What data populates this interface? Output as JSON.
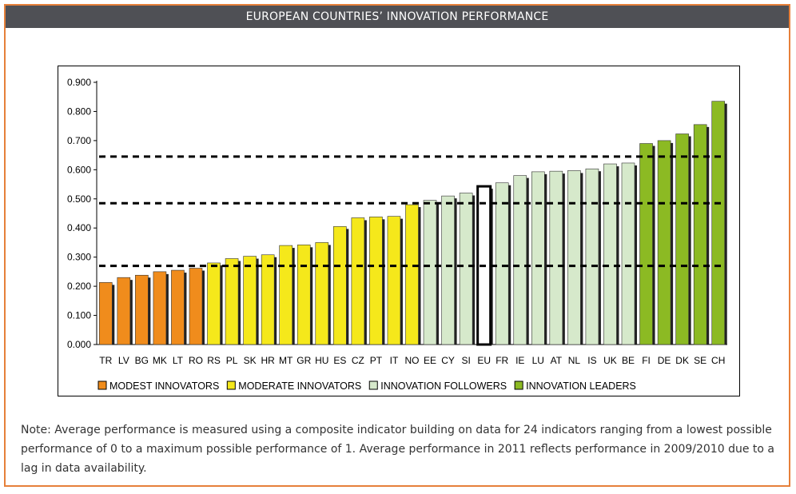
{
  "header": {
    "title": "EUROPEAN COUNTRIES’ INNOVATION PERFORMANCE"
  },
  "note": {
    "text": "Note: Average performance is measured using a composite indicator building on data for 24 indicators ranging from a lowest possible performance of 0 to a maximum possible performance of 1. Average performance in 2011 reflects performance in 2009/2010 due to a lag in data availability."
  },
  "colors": {
    "modest": "#f08c1c",
    "moderate": "#f5e81b",
    "followers": "#d6e9cb",
    "leaders": "#8cba23",
    "eu": "#ffffff"
  },
  "chart_data": {
    "type": "bar",
    "title": "",
    "xlabel": "",
    "ylabel": "",
    "ylim": [
      0,
      0.9
    ],
    "yticks": [
      "0.000",
      "0.100",
      "0.200",
      "0.300",
      "0.400",
      "0.500",
      "0.600",
      "0.700",
      "0.800",
      "0.900"
    ],
    "grid": false,
    "legend_position": "bottom",
    "categories": [
      "TR",
      "LV",
      "BG",
      "MK",
      "LT",
      "RO",
      "RS",
      "PL",
      "SK",
      "HR",
      "MT",
      "GR",
      "HU",
      "ES",
      "CZ",
      "PT",
      "IT",
      "NO",
      "EE",
      "CY",
      "SI",
      "EU",
      "FR",
      "IE",
      "LU",
      "AT",
      "NL",
      "IS",
      "UK",
      "BE",
      "FI",
      "DE",
      "DK",
      "SE",
      "CH"
    ],
    "values": [
      0.213,
      0.23,
      0.238,
      0.25,
      0.255,
      0.262,
      0.28,
      0.295,
      0.303,
      0.308,
      0.34,
      0.342,
      0.35,
      0.405,
      0.435,
      0.438,
      0.44,
      0.48,
      0.495,
      0.51,
      0.52,
      0.543,
      0.555,
      0.58,
      0.593,
      0.595,
      0.597,
      0.603,
      0.62,
      0.623,
      0.69,
      0.7,
      0.723,
      0.755,
      0.835
    ],
    "groups": [
      "modest",
      "modest",
      "modest",
      "modest",
      "modest",
      "modest",
      "moderate",
      "moderate",
      "moderate",
      "moderate",
      "moderate",
      "moderate",
      "moderate",
      "moderate",
      "moderate",
      "moderate",
      "moderate",
      "moderate",
      "followers",
      "followers",
      "followers",
      "eu",
      "followers",
      "followers",
      "followers",
      "followers",
      "followers",
      "followers",
      "followers",
      "followers",
      "leaders",
      "leaders",
      "leaders",
      "leaders",
      "leaders"
    ],
    "reference_lines": [
      0.27,
      0.485,
      0.645
    ],
    "legend": [
      {
        "key": "modest",
        "label": "MODEST INNOVATORS"
      },
      {
        "key": "moderate",
        "label": "MODERATE INNOVATORS"
      },
      {
        "key": "followers",
        "label": "INNOVATION FOLLOWERS"
      },
      {
        "key": "leaders",
        "label": "INNOVATION LEADERS"
      }
    ]
  }
}
